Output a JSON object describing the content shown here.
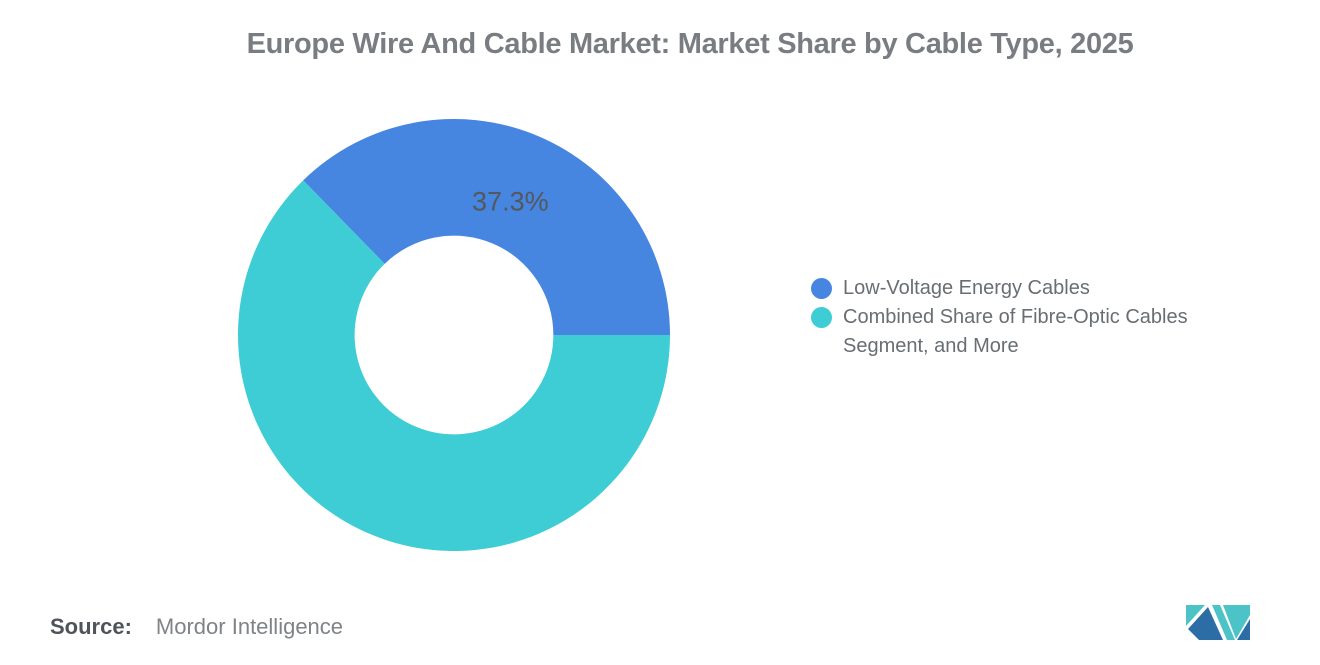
{
  "chart_data": {
    "type": "pie",
    "subtype": "donut",
    "title": "Europe Wire And Cable Market: Market Share by Cable Type, 2025",
    "slices": [
      {
        "label": "Low-Voltage Energy Cables",
        "value": 37.3,
        "display_label": "37.3%",
        "color": "#4685E0"
      },
      {
        "label": "Combined Share of Fibre-Optic Cables Segment, and More",
        "value": 62.7,
        "display_label": "",
        "color": "#3ECDD4"
      }
    ],
    "legend_position": "right",
    "hole_ratio": 0.46,
    "first_slice_end_angle_deg": 0,
    "data_label_color": "#54585c"
  },
  "source": {
    "label": "Source:",
    "text": "Mordor Intelligence"
  },
  "logo": {
    "name": "mordor-intelligence-logo",
    "colors": {
      "blue": "#2D6DA5",
      "teal": "#4CC4C7"
    }
  }
}
